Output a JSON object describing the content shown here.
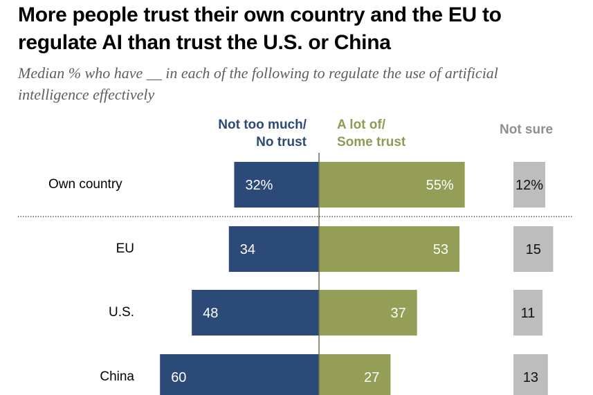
{
  "chart_data": {
    "type": "bar",
    "subtype": "diverging-stacked-bar",
    "title": "More people trust their own country and the EU to regulate AI than trust the U.S. or China",
    "subtitle": "Median % who have __ in each of the following to regulate the use of artificial intelligence effectively",
    "xlabel": "",
    "ylabel": "",
    "grid": false,
    "legend": "top",
    "categories": [
      "Own country",
      "EU",
      "U.S.",
      "China"
    ],
    "series": [
      {
        "name": "Not too much/ No trust",
        "header_lines": [
          "Not too much/",
          "No trust"
        ],
        "color": "#2b4a77",
        "direction": "left",
        "values": [
          32,
          34,
          48,
          60
        ],
        "labels": [
          "32%",
          "34",
          "48",
          "60"
        ]
      },
      {
        "name": "A lot of/ Some trust",
        "header_lines": [
          "A lot of/",
          "Some trust"
        ],
        "color": "#949e56",
        "direction": "right",
        "values": [
          55,
          53,
          37,
          27
        ],
        "labels": [
          "55%",
          "53",
          "37",
          "27"
        ]
      },
      {
        "name": "Not sure",
        "header_lines": [
          "Not sure"
        ],
        "color": "#bdbdbd",
        "direction": "separate",
        "values": [
          12,
          15,
          11,
          13
        ],
        "labels": [
          "12%",
          "15",
          "11",
          "13"
        ]
      }
    ],
    "separator_after_category": "Own country",
    "axis_color": "#6f6d55"
  }
}
